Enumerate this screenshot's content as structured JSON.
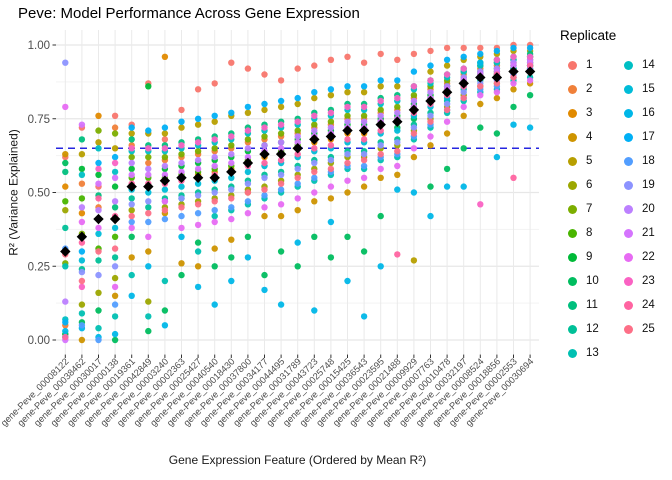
{
  "chart_data": {
    "type": "scatter",
    "title": "Peve: Model Performance Across Gene Expression",
    "xlabel": "Gene Expression Feature (Ordered by Mean R²)",
    "ylabel": "R² (Variance Explained)",
    "ylim": [
      0,
      1
    ],
    "yticks": [
      0.0,
      0.25,
      0.5,
      0.75,
      1.0
    ],
    "ytick_labels": [
      "0.00",
      "0.25",
      "0.50",
      "0.75",
      "1.00"
    ],
    "grid": "major-and-minor-horizontal, vertical per category",
    "threshold_line": {
      "value": 0.65,
      "color": "#2525E0",
      "style": "dashed"
    },
    "mean_marker": {
      "shape": "black-diamond",
      "color": "#000000"
    },
    "colors": {
      "grid_major": "#e7e7e7",
      "grid_minor": "#f3f3f3",
      "axis_text": "#4d4d4d",
      "tick": "#333333",
      "background": "#ffffff"
    },
    "legend": {
      "title": "Replicate",
      "position": "right",
      "labels": [
        "1",
        "2",
        "3",
        "4",
        "5",
        "6",
        "7",
        "8",
        "9",
        "10",
        "11",
        "12",
        "13",
        "14",
        "15",
        "16",
        "17",
        "18",
        "19",
        "20",
        "21",
        "22",
        "23",
        "24",
        "25"
      ],
      "swatches": [
        "#F8766D",
        "#F08039",
        "#E18A00",
        "#CE9400",
        "#B79F00",
        "#9CA700",
        "#7CAE00",
        "#49B500",
        "#00BA38",
        "#00BD5F",
        "#00BF7D",
        "#00C098",
        "#00C0B2",
        "#00BFC4",
        "#00BCD8",
        "#00B7E8",
        "#00B0F6",
        "#529EFF",
        "#8C93FF",
        "#BC80FF",
        "#D574FE",
        "#E76BF3",
        "#FA62C3",
        "#FF64A1",
        "#FD6F87"
      ]
    },
    "categories": [
      "gene-Peve_00008122",
      "gene-Peve_00038462",
      "gene-Peve_00030017",
      "gene-Peve_00000138",
      "gene-Peve_00019361",
      "gene-Peve_00042849",
      "gene-Peve_00003240",
      "gene-Peve_00002363",
      "gene-Peve_00025427",
      "gene-Peve_00040540",
      "gene-Peve_00018430",
      "gene-Peve_00037800",
      "gene-Peve_00034177",
      "gene-Peve_00044495",
      "gene-Peve_00031789",
      "gene-Peve_00043723",
      "gene-Peve_00025748",
      "gene-Peve_00015425",
      "gene-Peve_00036543",
      "gene-Peve_00023595",
      "gene-Peve_00021488",
      "gene-Peve_00009929",
      "gene-Peve_00007763",
      "gene-Peve_00010478",
      "gene-Peve_00032197",
      "gene-Peve_00008524",
      "gene-Peve_00018856",
      "gene-Peve_00002553",
      "gene-Peve_00030694"
    ],
    "means": [
      0.3,
      0.35,
      0.41,
      0.41,
      0.52,
      0.52,
      0.54,
      0.55,
      0.55,
      0.55,
      0.57,
      0.6,
      0.63,
      0.63,
      0.65,
      0.68,
      0.69,
      0.71,
      0.71,
      0.73,
      0.74,
      0.78,
      0.81,
      0.84,
      0.87,
      0.89,
      0.89,
      0.91,
      0.91
    ],
    "points": [
      [
        0.62,
        0.05,
        0.52,
        0.63,
        0.3,
        0.44,
        0.26,
        0.47,
        0.02,
        0.6,
        0.57,
        0.38,
        0.25,
        0.07,
        0.01,
        0.03,
        0.06,
        0.31,
        0.94,
        0.13,
        0.0,
        0.79,
        0.3,
        0.01,
        0.29
      ],
      [
        0.72,
        0.53,
        0.43,
        0.0,
        0.63,
        0.12,
        0.36,
        0.48,
        0.58,
        0.06,
        0.68,
        0.24,
        0.09,
        0.56,
        0.27,
        0.04,
        0.3,
        0.05,
        0.23,
        0.45,
        0.73,
        0.4,
        0.18,
        0.33,
        0.2
      ],
      [
        0.52,
        0.45,
        0.76,
        0.41,
        0.67,
        0.16,
        0.71,
        0.31,
        0.56,
        0.1,
        0.49,
        0.27,
        0.04,
        0.65,
        0.36,
        0.01,
        0.6,
        0.0,
        0.22,
        0.44,
        0.53,
        0.38,
        0.58,
        0.48,
        0.3
      ],
      [
        0.76,
        0.72,
        0.41,
        0.15,
        0.65,
        0.21,
        0.7,
        0.35,
        0.52,
        0.0,
        0.45,
        0.28,
        0.08,
        0.57,
        0.38,
        0.02,
        0.62,
        0.12,
        0.25,
        0.47,
        0.55,
        0.18,
        0.6,
        0.42,
        0.31
      ],
      [
        0.73,
        0.66,
        0.52,
        0.28,
        0.7,
        0.44,
        0.62,
        0.55,
        0.58,
        0.35,
        0.68,
        0.48,
        0.22,
        0.64,
        0.51,
        0.15,
        0.72,
        0.4,
        0.46,
        0.6,
        0.56,
        0.38,
        0.65,
        0.53,
        0.42
      ],
      [
        0.87,
        0.6,
        0.52,
        0.3,
        0.7,
        0.13,
        0.62,
        0.55,
        0.86,
        0.03,
        0.66,
        0.45,
        0.08,
        0.64,
        0.5,
        0.25,
        0.71,
        0.4,
        0.47,
        0.58,
        0.56,
        0.35,
        0.65,
        0.53,
        0.43
      ],
      [
        0.68,
        0.61,
        0.96,
        0.43,
        0.7,
        0.45,
        0.62,
        0.55,
        0.58,
        0.1,
        0.66,
        0.48,
        0.2,
        0.64,
        0.51,
        0.05,
        0.72,
        0.41,
        0.47,
        0.59,
        0.56,
        0.47,
        0.65,
        0.53,
        0.44
      ],
      [
        0.78,
        0.62,
        0.55,
        0.26,
        0.72,
        0.46,
        0.63,
        0.56,
        0.59,
        0.22,
        0.67,
        0.49,
        0.48,
        0.65,
        0.52,
        0.35,
        0.74,
        0.42,
        0.48,
        0.6,
        0.57,
        0.38,
        0.66,
        0.54,
        0.45
      ],
      [
        0.85,
        0.63,
        0.56,
        0.25,
        0.73,
        0.47,
        0.64,
        0.57,
        0.6,
        0.33,
        0.68,
        0.5,
        0.3,
        0.66,
        0.53,
        0.18,
        0.75,
        0.43,
        0.49,
        0.61,
        0.58,
        0.39,
        0.67,
        0.55,
        0.46
      ],
      [
        0.87,
        0.64,
        0.57,
        0.31,
        0.74,
        0.48,
        0.65,
        0.58,
        0.61,
        0.25,
        0.69,
        0.51,
        0.42,
        0.67,
        0.54,
        0.12,
        0.76,
        0.44,
        0.5,
        0.62,
        0.59,
        0.4,
        0.68,
        0.56,
        0.47
      ],
      [
        0.94,
        0.65,
        0.58,
        0.34,
        0.76,
        0.49,
        0.66,
        0.59,
        0.62,
        0.28,
        0.7,
        0.52,
        0.44,
        0.68,
        0.55,
        0.2,
        0.77,
        0.45,
        0.51,
        0.63,
        0.6,
        0.41,
        0.69,
        0.57,
        0.48
      ],
      [
        0.92,
        0.67,
        0.6,
        0.5,
        0.77,
        0.51,
        0.68,
        0.61,
        0.64,
        0.35,
        0.72,
        0.54,
        0.46,
        0.7,
        0.57,
        0.28,
        0.79,
        0.47,
        0.53,
        0.65,
        0.62,
        0.43,
        0.71,
        0.59,
        0.5
      ],
      [
        0.9,
        0.68,
        0.62,
        0.42,
        0.78,
        0.52,
        0.69,
        0.63,
        0.66,
        0.22,
        0.73,
        0.56,
        0.48,
        0.71,
        0.59,
        0.17,
        0.8,
        0.49,
        0.55,
        0.66,
        0.64,
        0.45,
        0.72,
        0.6,
        0.51
      ],
      [
        0.88,
        0.69,
        0.63,
        0.42,
        0.79,
        0.54,
        0.7,
        0.64,
        0.67,
        0.3,
        0.74,
        0.57,
        0.5,
        0.72,
        0.6,
        0.12,
        0.81,
        0.51,
        0.56,
        0.67,
        0.65,
        0.46,
        0.73,
        0.61,
        0.53
      ],
      [
        0.92,
        0.7,
        0.65,
        0.44,
        0.8,
        0.56,
        0.71,
        0.66,
        0.68,
        0.25,
        0.75,
        0.59,
        0.52,
        0.73,
        0.62,
        0.33,
        0.82,
        0.53,
        0.58,
        0.69,
        0.67,
        0.48,
        0.74,
        0.63,
        0.55
      ],
      [
        0.93,
        0.72,
        0.67,
        0.47,
        0.82,
        0.58,
        0.73,
        0.68,
        0.7,
        0.35,
        0.77,
        0.61,
        0.54,
        0.75,
        0.64,
        0.1,
        0.84,
        0.55,
        0.6,
        0.71,
        0.69,
        0.5,
        0.76,
        0.65,
        0.57
      ],
      [
        0.95,
        0.73,
        0.68,
        0.48,
        0.83,
        0.6,
        0.74,
        0.69,
        0.71,
        0.28,
        0.78,
        0.62,
        0.56,
        0.76,
        0.65,
        0.4,
        0.85,
        0.57,
        0.61,
        0.72,
        0.7,
        0.52,
        0.77,
        0.66,
        0.58
      ],
      [
        0.96,
        0.75,
        0.7,
        0.5,
        0.84,
        0.62,
        0.76,
        0.71,
        0.73,
        0.35,
        0.8,
        0.64,
        0.58,
        0.78,
        0.67,
        0.2,
        0.86,
        0.59,
        0.63,
        0.74,
        0.72,
        0.54,
        0.79,
        0.68,
        0.6
      ],
      [
        0.94,
        0.75,
        0.7,
        0.52,
        0.84,
        0.62,
        0.76,
        0.71,
        0.73,
        0.3,
        0.8,
        0.64,
        0.58,
        0.78,
        0.67,
        0.08,
        0.86,
        0.59,
        0.63,
        0.74,
        0.72,
        0.55,
        0.79,
        0.68,
        0.61
      ],
      [
        0.97,
        0.77,
        0.73,
        0.55,
        0.86,
        0.65,
        0.78,
        0.74,
        0.75,
        0.42,
        0.82,
        0.67,
        0.61,
        0.8,
        0.7,
        0.25,
        0.88,
        0.62,
        0.66,
        0.76,
        0.74,
        0.58,
        0.81,
        0.71,
        0.63
      ],
      [
        0.95,
        0.78,
        0.74,
        0.56,
        0.86,
        0.66,
        0.79,
        0.75,
        0.76,
        0.72,
        0.83,
        0.68,
        0.62,
        0.81,
        0.71,
        0.51,
        0.88,
        0.63,
        0.67,
        0.77,
        0.75,
        0.59,
        0.82,
        0.29,
        0.64
      ],
      [
        0.97,
        0.82,
        0.78,
        0.62,
        0.27,
        0.71,
        0.83,
        0.79,
        0.8,
        0.75,
        0.86,
        0.73,
        0.68,
        0.85,
        0.76,
        0.5,
        0.91,
        0.69,
        0.72,
        0.81,
        0.79,
        0.65,
        0.86,
        0.77,
        0.7
      ],
      [
        0.98,
        0.85,
        0.81,
        0.66,
        0.91,
        0.75,
        0.86,
        0.82,
        0.83,
        0.52,
        0.88,
        0.77,
        0.72,
        0.87,
        0.79,
        0.42,
        0.93,
        0.73,
        0.76,
        0.84,
        0.82,
        0.69,
        0.88,
        0.8,
        0.74
      ],
      [
        0.99,
        0.87,
        0.84,
        0.7,
        0.93,
        0.79,
        0.88,
        0.85,
        0.86,
        0.58,
        0.9,
        0.81,
        0.77,
        0.89,
        0.82,
        0.52,
        0.95,
        0.78,
        0.8,
        0.86,
        0.85,
        0.74,
        0.9,
        0.83,
        0.78
      ],
      [
        0.99,
        0.9,
        0.87,
        0.76,
        0.95,
        0.83,
        0.91,
        0.88,
        0.89,
        0.65,
        0.92,
        0.85,
        0.81,
        0.91,
        0.86,
        0.52,
        0.96,
        0.82,
        0.84,
        0.89,
        0.88,
        0.79,
        0.92,
        0.86,
        0.82
      ],
      [
        0.99,
        0.92,
        0.89,
        0.8,
        0.96,
        0.86,
        0.93,
        0.9,
        0.91,
        0.72,
        0.94,
        0.88,
        0.84,
        0.93,
        0.89,
        0.94,
        0.97,
        0.85,
        0.87,
        0.91,
        0.9,
        0.83,
        0.46,
        0.89,
        0.86
      ],
      [
        0.99,
        0.93,
        0.9,
        0.82,
        0.97,
        0.87,
        0.94,
        0.91,
        0.92,
        0.7,
        0.95,
        0.89,
        0.85,
        0.94,
        0.9,
        0.62,
        0.98,
        0.86,
        0.88,
        0.92,
        0.91,
        0.84,
        0.95,
        0.9,
        0.87
      ],
      [
        1.0,
        0.94,
        0.92,
        0.85,
        0.98,
        0.89,
        0.95,
        0.92,
        0.93,
        0.79,
        0.96,
        0.91,
        0.88,
        0.95,
        0.92,
        0.73,
        0.99,
        0.89,
        0.9,
        0.94,
        0.93,
        0.87,
        0.96,
        0.55,
        0.89
      ],
      [
        1.0,
        0.95,
        0.93,
        0.87,
        0.98,
        0.91,
        0.96,
        0.93,
        0.94,
        0.83,
        0.97,
        0.92,
        0.89,
        0.96,
        0.93,
        0.72,
        0.99,
        0.91,
        0.92,
        0.95,
        0.94,
        0.88,
        0.96,
        0.93,
        0.91
      ]
    ]
  }
}
